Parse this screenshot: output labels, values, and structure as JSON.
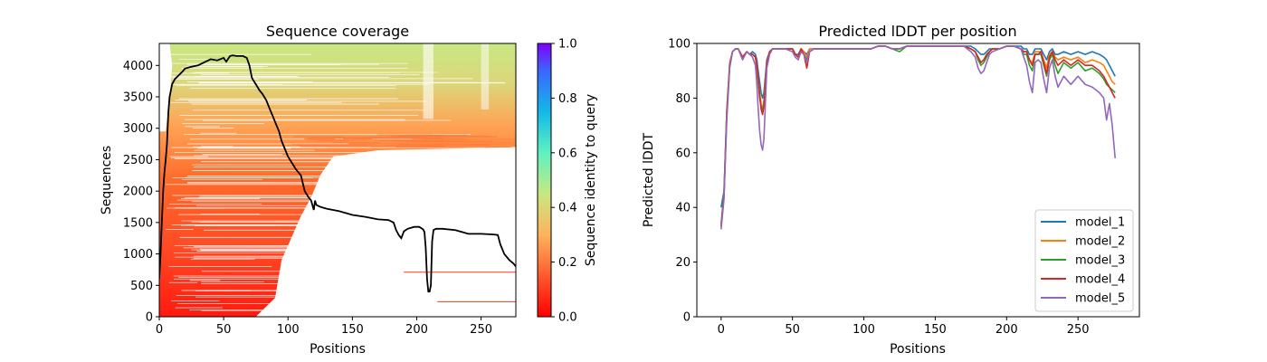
{
  "chart_data": [
    {
      "type": "heatmap",
      "title": "Sequence coverage",
      "xlabel": "Positions",
      "ylabel": "Sequences",
      "xlim": [
        0,
        277
      ],
      "ylim": [
        0,
        4350
      ],
      "xticks": [
        "0",
        "50",
        "100",
        "150",
        "200",
        "250"
      ],
      "yticks": [
        "0",
        "500",
        "1000",
        "1500",
        "2000",
        "2500",
        "3000",
        "3500",
        "4000"
      ],
      "colorbar": {
        "label": "Sequence identity to query",
        "range": [
          0.0,
          1.0
        ],
        "ticks": [
          "0.0",
          "0.2",
          "0.4",
          "0.6",
          "0.8",
          "1.0"
        ],
        "colormap": "rainbow_r"
      },
      "coverage_line": {
        "color": "#000000",
        "x": [
          0,
          1,
          2,
          3,
          4,
          5,
          6,
          7,
          8,
          10,
          12,
          15,
          18,
          20,
          25,
          30,
          35,
          40,
          45,
          50,
          52,
          55,
          57,
          60,
          65,
          68,
          70,
          72,
          75,
          78,
          80,
          83,
          86,
          88,
          90,
          93,
          95,
          97,
          100,
          103,
          106,
          110,
          113,
          116,
          118,
          120,
          121,
          122,
          125,
          130,
          140,
          150,
          160,
          170,
          178,
          182,
          184,
          186,
          188,
          190,
          193,
          198,
          202,
          205,
          206,
          207,
          208,
          209,
          210,
          211,
          212,
          213,
          215,
          220,
          230,
          235,
          240,
          250,
          260,
          263,
          265,
          268,
          270,
          272,
          275,
          277
        ],
        "y": [
          600,
          1000,
          1500,
          2000,
          2300,
          2500,
          2750,
          3250,
          3500,
          3700,
          3780,
          3840,
          3900,
          3950,
          3980,
          4000,
          4050,
          4100,
          4080,
          4120,
          4060,
          4150,
          4160,
          4150,
          4150,
          4120,
          4000,
          3800,
          3700,
          3600,
          3550,
          3450,
          3300,
          3200,
          3100,
          2950,
          2800,
          2700,
          2550,
          2450,
          2350,
          2250,
          2000,
          1900,
          1850,
          1700,
          1850,
          1780,
          1750,
          1720,
          1680,
          1620,
          1590,
          1550,
          1540,
          1500,
          1380,
          1300,
          1250,
          1360,
          1400,
          1430,
          1430,
          1390,
          1350,
          1100,
          600,
          400,
          400,
          500,
          1200,
          1380,
          1400,
          1400,
          1380,
          1350,
          1320,
          1320,
          1310,
          1300,
          1150,
          1000,
          950,
          900,
          850,
          800
        ]
      }
    },
    {
      "type": "line",
      "title": "Predicted lDDT per position",
      "xlabel": "Positions",
      "ylabel": "Predicted lDDT",
      "xlim": [
        -17,
        293
      ],
      "ylim": [
        0,
        100
      ],
      "xticks": [
        "0",
        "50",
        "100",
        "150",
        "200",
        "250"
      ],
      "yticks": [
        "0",
        "20",
        "40",
        "60",
        "80",
        "100"
      ],
      "legend_position": "lower right",
      "x": [
        0,
        2,
        4,
        6,
        8,
        10,
        12,
        15,
        18,
        20,
        22,
        24,
        25,
        26,
        27,
        28,
        29,
        30,
        31,
        32,
        34,
        36,
        40,
        45,
        50,
        52,
        54,
        56,
        58,
        60,
        62,
        65,
        70,
        75,
        80,
        85,
        90,
        95,
        100,
        105,
        110,
        115,
        120,
        125,
        130,
        140,
        150,
        160,
        170,
        175,
        178,
        180,
        182,
        184,
        186,
        188,
        190,
        195,
        200,
        205,
        210,
        212,
        214,
        216,
        218,
        220,
        222,
        224,
        226,
        228,
        230,
        232,
        234,
        236,
        240,
        245,
        250,
        255,
        260,
        265,
        268,
        270,
        272,
        274,
        276
      ],
      "series": [
        {
          "name": "model_1",
          "color": "#1f77b4",
          "values": [
            40,
            46,
            75,
            92,
            97,
            98,
            98,
            95,
            97,
            96,
            97,
            96,
            94,
            90,
            86,
            82,
            80,
            82,
            88,
            94,
            97,
            98,
            98,
            98,
            98,
            96,
            96,
            98,
            97,
            96,
            98,
            98,
            98,
            98,
            98,
            98,
            98,
            98,
            98,
            98,
            99,
            99,
            98,
            98,
            99,
            99,
            99,
            99,
            99,
            99,
            98,
            97,
            96,
            96,
            97,
            98,
            98,
            98,
            99,
            99,
            99,
            98,
            98,
            96,
            96,
            98,
            98,
            98,
            96,
            94,
            97,
            98,
            96,
            96,
            97,
            96,
            97,
            96,
            97,
            96,
            95,
            94,
            92,
            90,
            88
          ]
        },
        {
          "name": "model_2",
          "color": "#ff7f0e",
          "values": [
            33,
            45,
            76,
            93,
            97,
            98,
            98,
            95,
            97,
            96,
            96,
            95,
            92,
            87,
            82,
            78,
            76,
            79,
            86,
            93,
            97,
            98,
            98,
            98,
            98,
            96,
            95,
            98,
            97,
            95,
            98,
            98,
            98,
            98,
            98,
            98,
            98,
            98,
            98,
            98,
            99,
            99,
            98,
            98,
            99,
            99,
            99,
            99,
            99,
            98,
            97,
            95,
            93,
            94,
            96,
            97,
            98,
            98,
            99,
            99,
            98,
            97,
            97,
            94,
            93,
            97,
            97,
            97,
            94,
            91,
            96,
            97,
            95,
            94,
            95,
            94,
            95,
            93,
            94,
            93,
            92,
            90,
            88,
            86,
            85
          ]
        },
        {
          "name": "model_3",
          "color": "#2ca02c",
          "values": [
            34,
            45,
            75,
            92,
            97,
            98,
            98,
            95,
            97,
            96,
            96,
            95,
            91,
            86,
            80,
            77,
            75,
            78,
            85,
            93,
            97,
            98,
            98,
            98,
            98,
            96,
            95,
            97,
            96,
            94,
            97,
            98,
            98,
            98,
            98,
            98,
            98,
            98,
            98,
            98,
            99,
            99,
            98,
            97,
            99,
            99,
            99,
            99,
            99,
            98,
            97,
            94,
            92,
            93,
            95,
            97,
            98,
            98,
            99,
            99,
            98,
            96,
            96,
            92,
            90,
            96,
            96,
            96,
            92,
            88,
            94,
            96,
            92,
            89,
            93,
            91,
            93,
            90,
            91,
            89,
            87,
            85,
            84,
            83,
            82
          ]
        },
        {
          "name": "model_4",
          "color": "#d62728",
          "values": [
            33,
            44,
            74,
            92,
            97,
            98,
            98,
            95,
            97,
            96,
            96,
            95,
            92,
            87,
            81,
            76,
            74,
            77,
            85,
            93,
            97,
            98,
            98,
            98,
            98,
            96,
            95,
            98,
            96,
            91,
            97,
            98,
            98,
            98,
            98,
            98,
            98,
            98,
            98,
            98,
            99,
            99,
            98,
            98,
            99,
            99,
            99,
            99,
            99,
            98,
            97,
            95,
            93,
            94,
            96,
            97,
            98,
            98,
            99,
            99,
            98,
            97,
            97,
            94,
            92,
            96,
            96,
            97,
            93,
            89,
            95,
            97,
            94,
            92,
            94,
            92,
            94,
            92,
            92,
            90,
            88,
            86,
            84,
            82,
            80
          ]
        },
        {
          "name": "model_5",
          "color": "#9467bd",
          "values": [
            32,
            43,
            72,
            91,
            97,
            98,
            98,
            94,
            97,
            96,
            95,
            92,
            85,
            76,
            68,
            63,
            61,
            65,
            78,
            91,
            96,
            98,
            98,
            98,
            97,
            95,
            94,
            97,
            96,
            93,
            97,
            98,
            98,
            98,
            98,
            98,
            98,
            98,
            98,
            98,
            99,
            99,
            98,
            98,
            99,
            99,
            99,
            99,
            99,
            97,
            95,
            91,
            89,
            90,
            93,
            96,
            97,
            98,
            99,
            99,
            98,
            95,
            92,
            86,
            82,
            93,
            94,
            93,
            87,
            82,
            91,
            94,
            88,
            84,
            88,
            85,
            88,
            85,
            84,
            82,
            80,
            72,
            78,
            70,
            58
          ]
        }
      ]
    }
  ]
}
